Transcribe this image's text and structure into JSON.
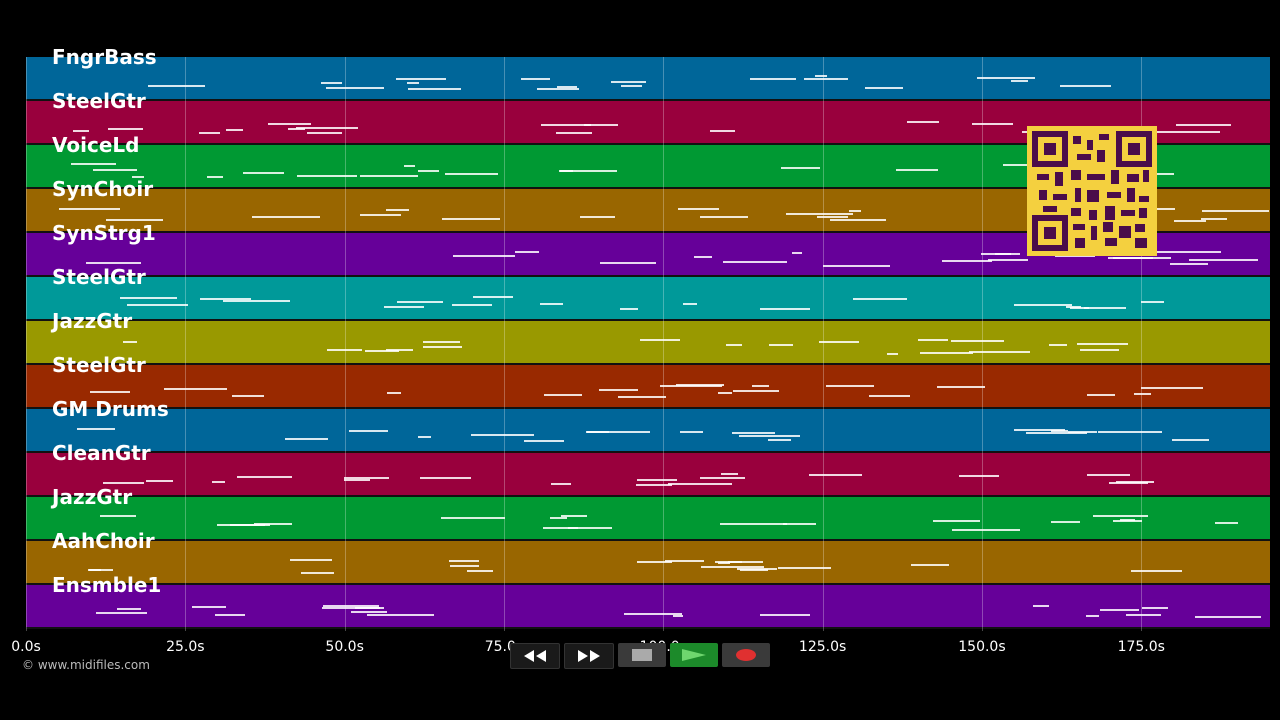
{
  "tracks": [
    {
      "label": "FngrBass",
      "color": "#006699"
    },
    {
      "label": "SteelGtr",
      "color": "#99003d"
    },
    {
      "label": "VoiceLd",
      "color": "#009933"
    },
    {
      "label": "SynChoir",
      "color": "#996600"
    },
    {
      "label": "SynStrg1",
      "color": "#660099"
    },
    {
      "label": "SteelGtr",
      "color": "#009999"
    },
    {
      "label": "JazzGtr",
      "color": "#999900"
    },
    {
      "label": "SteelGtr",
      "color": "#992900"
    },
    {
      "label": "GM Drums",
      "color": "#006699"
    },
    {
      "label": "CleanGtr",
      "color": "#99003d"
    },
    {
      "label": "JazzGtr",
      "color": "#009933"
    },
    {
      "label": "AahChoir",
      "color": "#996600"
    },
    {
      "label": "Ensmble1",
      "color": "#660099"
    }
  ],
  "timeline": {
    "ticks": [
      "0.0s",
      "25.0s",
      "50.0s",
      "75.0s",
      "100.0s",
      "125.0s",
      "150.0s",
      "175.0s"
    ],
    "tick_values": [
      0,
      25,
      50,
      75,
      100,
      125,
      150,
      175
    ],
    "max_seconds": 195.2
  },
  "copyright": "© www.midifiles.com",
  "transport": {
    "rewind_icon": "rewind-icon",
    "forward_icon": "fast-forward-icon",
    "stop_icon": "stop-icon",
    "play_icon": "play-icon",
    "record_icon": "record-icon"
  },
  "qr_icon": "qr-code-icon"
}
